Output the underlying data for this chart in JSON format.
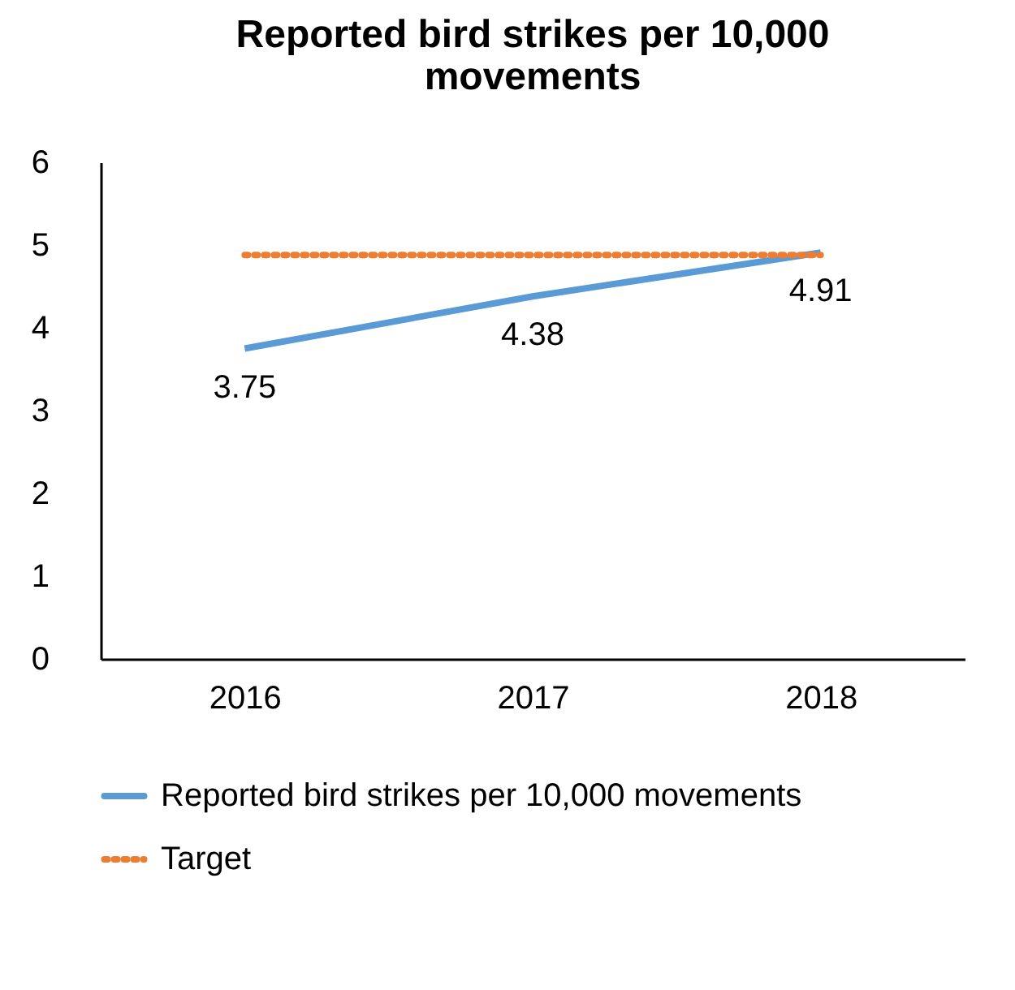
{
  "chart_data": {
    "type": "line",
    "title": "Reported bird strikes per 10,000 movements",
    "categories": [
      "2016",
      "2017",
      "2018"
    ],
    "series": [
      {
        "name": "Reported bird strikes per 10,000 movements",
        "color": "#5b9bd5",
        "values": [
          3.75,
          4.38,
          4.91
        ],
        "value_labels": [
          "3.75",
          "4.38",
          "4.91"
        ],
        "line_style": "solid"
      },
      {
        "name": "Target",
        "color": "#ed7d31",
        "values": [
          4.88,
          4.88,
          4.88
        ],
        "line_style": "dotted"
      }
    ],
    "ylim": [
      0,
      6
    ],
    "yticks": [
      0,
      1,
      2,
      3,
      4,
      5,
      6
    ],
    "grid": false,
    "legend": "bottom",
    "marker": "none"
  }
}
